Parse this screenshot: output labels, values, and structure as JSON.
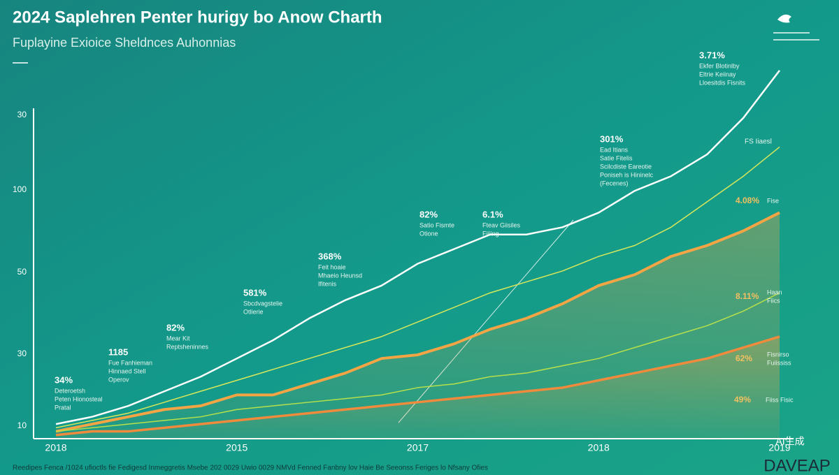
{
  "header": {
    "title": "2024 Saplehren Penter hurigy bo Anow Charth",
    "subtitle": "Fuplayine Exioice Sheldnces Auhonnias"
  },
  "chart_data": {
    "type": "line",
    "categories": [
      "2018",
      null,
      null,
      null,
      null,
      "2015",
      null,
      null,
      null,
      null,
      "2017",
      null,
      null,
      null,
      null,
      "2018",
      null,
      null,
      null,
      null,
      "2019"
    ],
    "ylim": [
      0,
      105
    ],
    "y_axis_labels": [
      "30",
      "100",
      "50",
      "30",
      "10"
    ],
    "series": [
      {
        "color": "#ffffff",
        "values": [
          4,
          6,
          9,
          13,
          17,
          22,
          27,
          33,
          38,
          42,
          48,
          52,
          56,
          56,
          58,
          62,
          68,
          72,
          78,
          88,
          101
        ]
      },
      {
        "color": "#d8e85a",
        "values": [
          3,
          5,
          7,
          10,
          13,
          16,
          19,
          22,
          25,
          28,
          32,
          36,
          40,
          43,
          46,
          50,
          53,
          58,
          65,
          72,
          80
        ]
      },
      {
        "color": "#f3a444",
        "values": [
          2,
          4,
          6,
          8,
          9,
          12,
          12,
          15,
          18,
          22,
          23,
          26,
          30,
          33,
          37,
          42,
          45,
          50,
          53,
          57,
          62
        ]
      },
      {
        "color": "#b8e04a",
        "values": [
          2,
          3,
          4,
          5,
          6,
          8,
          9,
          10,
          11,
          12,
          14,
          15,
          17,
          18,
          20,
          22,
          25,
          28,
          31,
          35,
          40
        ]
      },
      {
        "color": "#f08a3c",
        "values": [
          1,
          2,
          2,
          3,
          4,
          5,
          6,
          7,
          8,
          9,
          10,
          11,
          12,
          13,
          14,
          16,
          18,
          20,
          22,
          25,
          28
        ]
      }
    ],
    "annotations": [
      {
        "title": "34%",
        "lines": [
          "Deteroetsh",
          "Peten Hionosteal",
          "Pratal"
        ]
      },
      {
        "title": "1185",
        "lines": [
          "Fue Fanhieman",
          "Hinnaed Stell",
          "Operov"
        ]
      },
      {
        "title": "82%",
        "lines": [
          "Mear Kit",
          "Reptsheninnes"
        ]
      },
      {
        "title": "581%",
        "lines": [
          "Sbcdvagstelie",
          "Otlierie"
        ]
      },
      {
        "title": "368%",
        "lines": [
          "Feit hoaie",
          "Mhaeio Heunsd",
          "Ifitenis"
        ]
      },
      {
        "title": "82%",
        "lines": [
          "Satio Fismte",
          "Otione"
        ]
      },
      {
        "title": "6.1%",
        "lines": [
          "Fteav Giisiles",
          "Fiiiing"
        ]
      },
      {
        "title": "301%",
        "lines": [
          "Ead Itians",
          "Satie Fitelis",
          "Scilcdiste Eareotie",
          "Poniseh is Hininelc",
          "(Fecenes)"
        ]
      },
      {
        "title": "3.71%",
        "lines": [
          "Ekfer Blotinlby",
          "Eltrie Keiinay",
          "Lloesitdis Fisnits"
        ]
      }
    ],
    "side_labels": [
      {
        "title": "FS Iiaesl",
        "lines": []
      },
      {
        "title": "4.08%",
        "lines": [
          "Fise"
        ]
      },
      {
        "title": "8.11%",
        "lines": [
          "Haan",
          "Fiics"
        ]
      },
      {
        "title": "62%",
        "lines": [
          "Fisnirso",
          "Fuiississ"
        ]
      },
      {
        "title": "49%",
        "lines": [
          "Fiiss Fisic"
        ]
      }
    ]
  },
  "footer": {
    "note": "Reedipes Fenca /1024 ufioctls fie Fedigesd Inmeggretis Msebe 202 0029 Uwio 0029 NMVd Fenned Fanbny lov Haie Be Seeonss Feriges lo Nfsany Ofies",
    "brand": "DAVEAP",
    "badge": "AI生成"
  }
}
